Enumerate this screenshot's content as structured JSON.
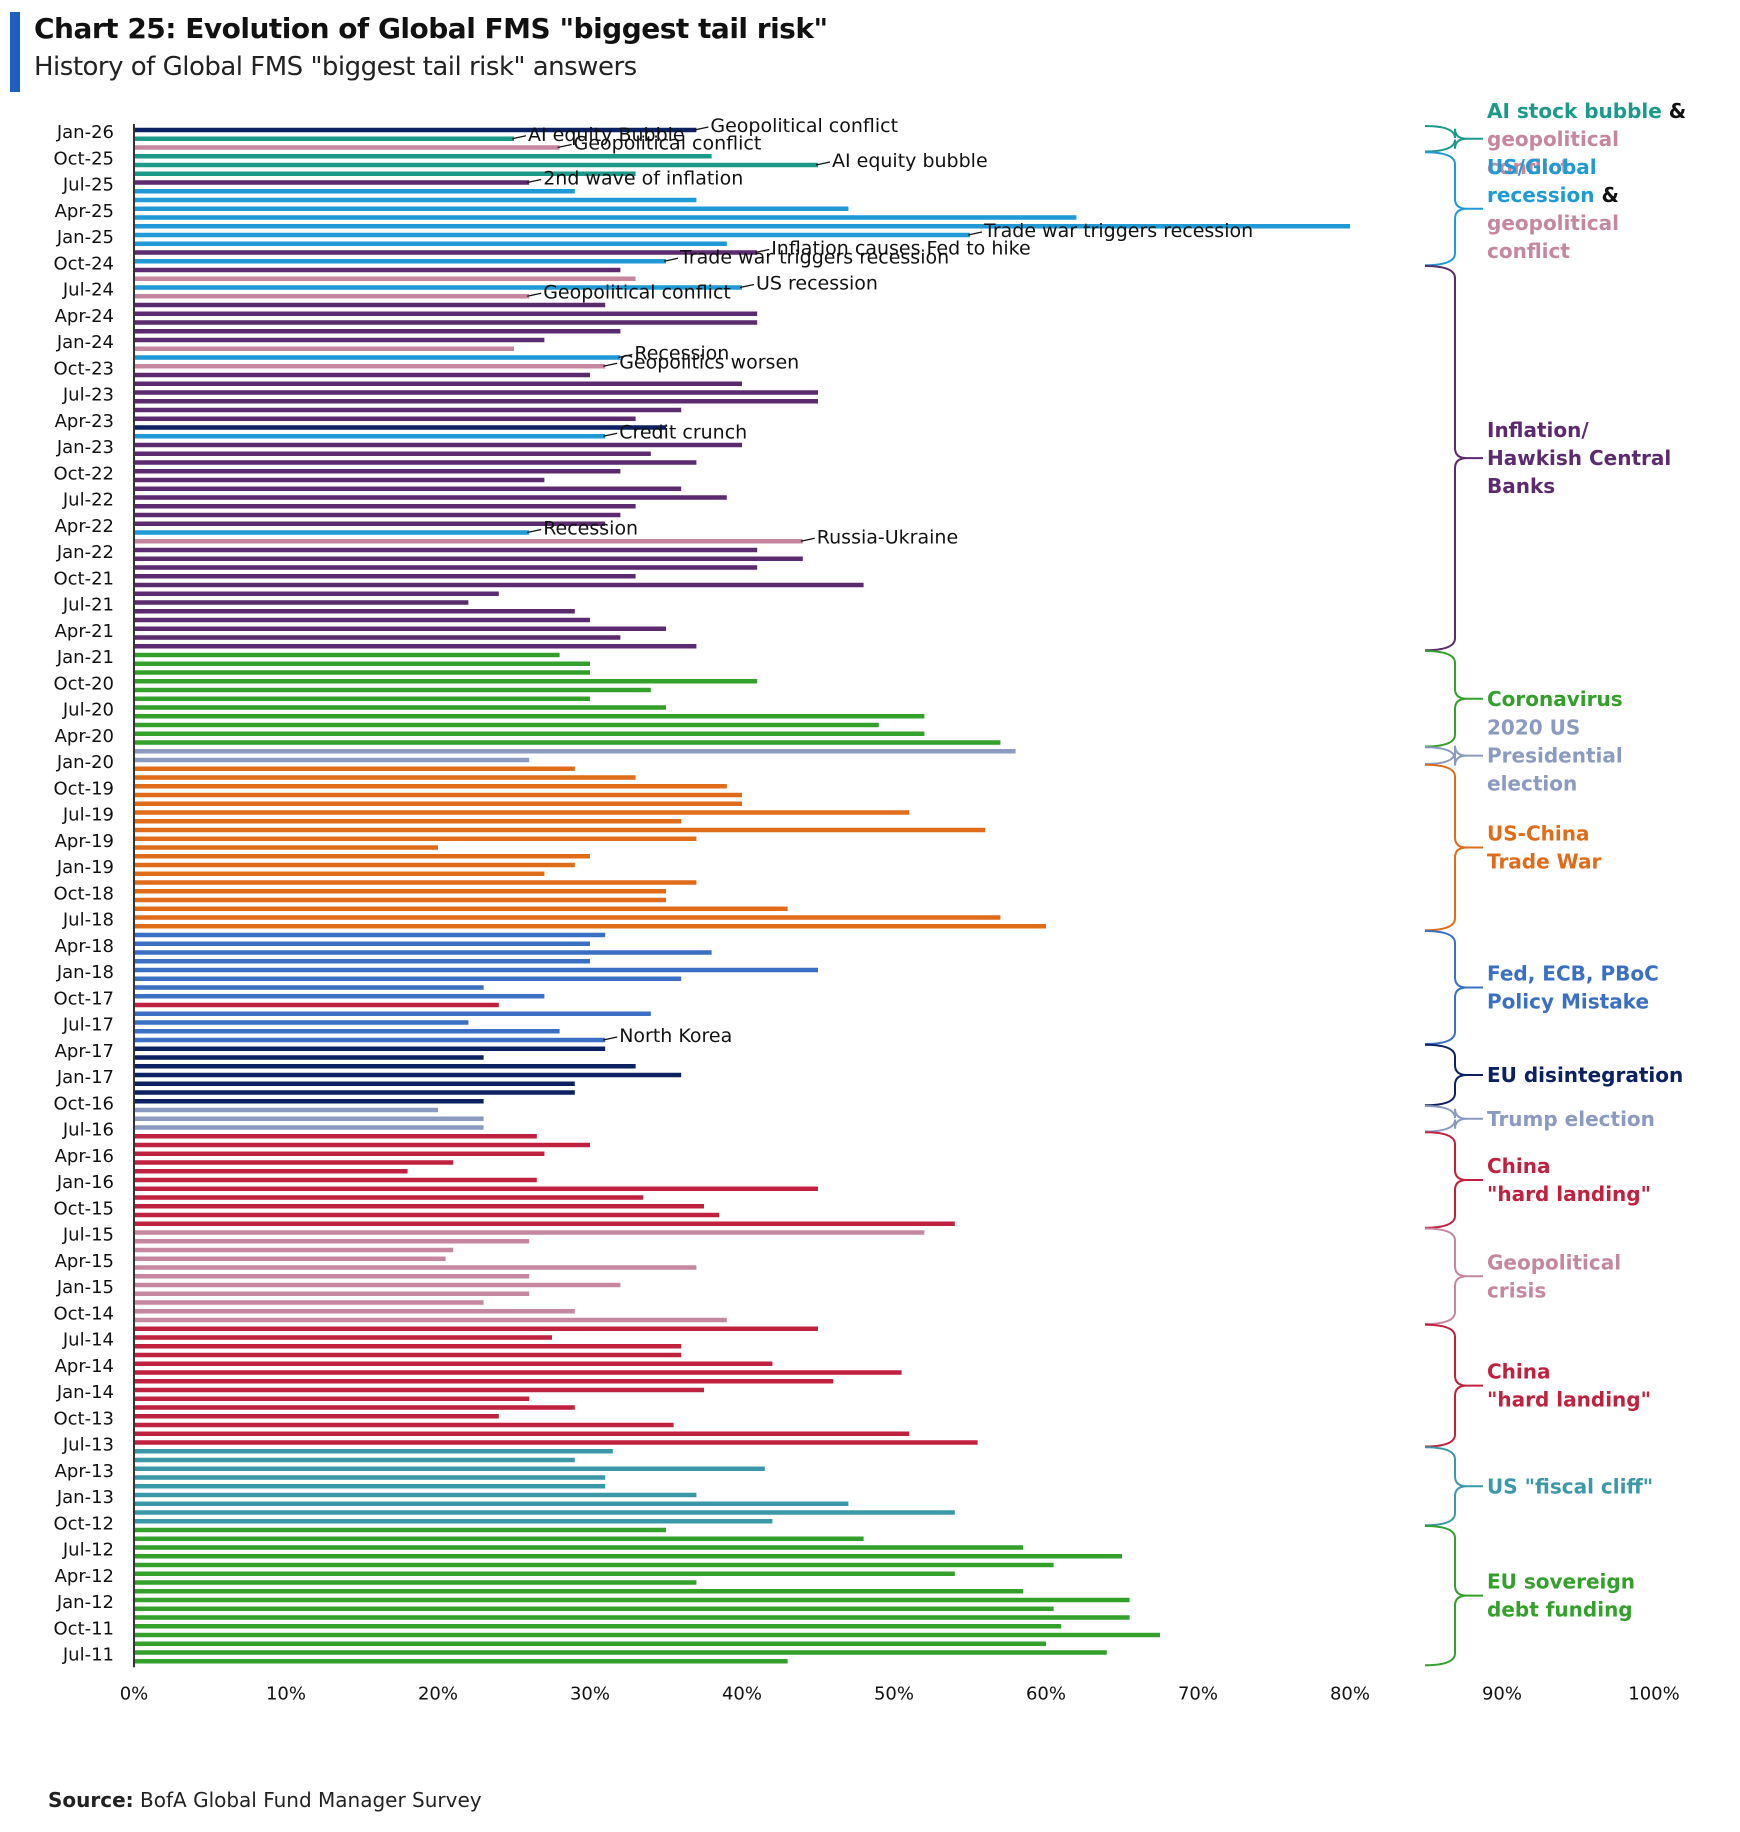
{
  "header": {
    "title": "Chart 25: Evolution of Global FMS \"biggest tail risk\"",
    "subtitle": "History of Global FMS \"biggest tail risk\" answers"
  },
  "source": {
    "label": "Source:",
    "text": " BofA Global Fund Manager Survey"
  },
  "colors": {
    "navy": "#0b2161",
    "teal": "#1b9a8a",
    "pink": "#c5869f",
    "blue": "#1f9ad6",
    "purple": "#5c2a6e",
    "green": "#33a02c",
    "grey_blue": "#8a9ac0",
    "orange": "#e06c1a",
    "royal": "#3a6fc4",
    "red": "#c0213e",
    "fiscal_teal": "#3a98a8"
  },
  "chart_data": {
    "type": "bar",
    "orientation": "horizontal",
    "xlim": [
      0,
      100
    ],
    "x_ticks": [
      "0%",
      "10%",
      "20%",
      "30%",
      "40%",
      "50%",
      "60%",
      "70%",
      "80%",
      "90%",
      "100%"
    ],
    "y_tick_labels": [
      "Jan-26",
      "Oct-25",
      "Jul-25",
      "Apr-25",
      "Jan-25",
      "Oct-24",
      "Jul-24",
      "Apr-24",
      "Jan-24",
      "Oct-23",
      "Jul-23",
      "Apr-23",
      "Jan-23",
      "Oct-22",
      "Jul-22",
      "Apr-22",
      "Jan-22",
      "Oct-21",
      "Jul-21",
      "Apr-21",
      "Jan-21",
      "Oct-20",
      "Jul-20",
      "Apr-20",
      "Jan-20",
      "Oct-19",
      "Jul-19",
      "Apr-19",
      "Jan-19",
      "Oct-18",
      "Jul-18",
      "Apr-18",
      "Jan-18",
      "Oct-17",
      "Jul-17",
      "Apr-17",
      "Jan-17",
      "Oct-16",
      "Jul-16",
      "Apr-16",
      "Jan-16",
      "Oct-15",
      "Jul-15",
      "Apr-15",
      "Jan-15",
      "Oct-14",
      "Jul-14",
      "Apr-14",
      "Jan-14",
      "Oct-13",
      "Jul-13",
      "Apr-13",
      "Jan-13",
      "Oct-12",
      "Jul-12",
      "Apr-12",
      "Jan-12",
      "Oct-11",
      "Jul-11"
    ],
    "bars": [
      {
        "v": 37,
        "c": "navy"
      },
      {
        "v": 25,
        "c": "teal"
      },
      {
        "v": 28,
        "c": "pink"
      },
      {
        "v": 38,
        "c": "teal"
      },
      {
        "v": 45,
        "c": "teal"
      },
      {
        "v": 33,
        "c": "teal"
      },
      {
        "v": 26,
        "c": "purple"
      },
      {
        "v": 29,
        "c": "blue"
      },
      {
        "v": 37,
        "c": "blue"
      },
      {
        "v": 47,
        "c": "blue"
      },
      {
        "v": 62,
        "c": "blue"
      },
      {
        "v": 80,
        "c": "blue"
      },
      {
        "v": 55,
        "c": "blue"
      },
      {
        "v": 39,
        "c": "blue"
      },
      {
        "v": 41,
        "c": "purple"
      },
      {
        "v": 35,
        "c": "blue"
      },
      {
        "v": 32,
        "c": "purple"
      },
      {
        "v": 33,
        "c": "pink"
      },
      {
        "v": 40,
        "c": "blue"
      },
      {
        "v": 26,
        "c": "pink"
      },
      {
        "v": 31,
        "c": "purple"
      },
      {
        "v": 41,
        "c": "purple"
      },
      {
        "v": 41,
        "c": "purple"
      },
      {
        "v": 32,
        "c": "purple"
      },
      {
        "v": 27,
        "c": "purple"
      },
      {
        "v": 25,
        "c": "pink"
      },
      {
        "v": 32,
        "c": "blue"
      },
      {
        "v": 31,
        "c": "pink"
      },
      {
        "v": 30,
        "c": "purple"
      },
      {
        "v": 40,
        "c": "purple"
      },
      {
        "v": 45,
        "c": "purple"
      },
      {
        "v": 45,
        "c": "purple"
      },
      {
        "v": 36,
        "c": "purple"
      },
      {
        "v": 33,
        "c": "purple"
      },
      {
        "v": 35,
        "c": "navy"
      },
      {
        "v": 31,
        "c": "blue"
      },
      {
        "v": 40,
        "c": "purple"
      },
      {
        "v": 34,
        "c": "purple"
      },
      {
        "v": 37,
        "c": "purple"
      },
      {
        "v": 32,
        "c": "purple"
      },
      {
        "v": 27,
        "c": "purple"
      },
      {
        "v": 36,
        "c": "purple"
      },
      {
        "v": 39,
        "c": "purple"
      },
      {
        "v": 33,
        "c": "purple"
      },
      {
        "v": 32,
        "c": "purple"
      },
      {
        "v": 31,
        "c": "purple"
      },
      {
        "v": 26,
        "c": "blue"
      },
      {
        "v": 44,
        "c": "pink"
      },
      {
        "v": 41,
        "c": "purple"
      },
      {
        "v": 44,
        "c": "purple"
      },
      {
        "v": 41,
        "c": "purple"
      },
      {
        "v": 33,
        "c": "purple"
      },
      {
        "v": 48,
        "c": "purple"
      },
      {
        "v": 24,
        "c": "purple"
      },
      {
        "v": 22,
        "c": "purple"
      },
      {
        "v": 29,
        "c": "purple"
      },
      {
        "v": 30,
        "c": "purple"
      },
      {
        "v": 35,
        "c": "purple"
      },
      {
        "v": 32,
        "c": "purple"
      },
      {
        "v": 37,
        "c": "purple"
      },
      {
        "v": 28,
        "c": "green"
      },
      {
        "v": 30,
        "c": "green"
      },
      {
        "v": 30,
        "c": "green"
      },
      {
        "v": 41,
        "c": "green"
      },
      {
        "v": 34,
        "c": "green"
      },
      {
        "v": 30,
        "c": "green"
      },
      {
        "v": 35,
        "c": "green"
      },
      {
        "v": 52,
        "c": "green"
      },
      {
        "v": 49,
        "c": "green"
      },
      {
        "v": 52,
        "c": "green"
      },
      {
        "v": 57,
        "c": "green"
      },
      {
        "v": 58,
        "c": "grey_blue"
      },
      {
        "v": 26,
        "c": "grey_blue"
      },
      {
        "v": 29,
        "c": "orange"
      },
      {
        "v": 33,
        "c": "orange"
      },
      {
        "v": 39,
        "c": "orange"
      },
      {
        "v": 40,
        "c": "orange"
      },
      {
        "v": 40,
        "c": "orange"
      },
      {
        "v": 51,
        "c": "orange"
      },
      {
        "v": 36,
        "c": "orange"
      },
      {
        "v": 56,
        "c": "orange"
      },
      {
        "v": 37,
        "c": "orange"
      },
      {
        "v": 20,
        "c": "orange"
      },
      {
        "v": 30,
        "c": "orange"
      },
      {
        "v": 29,
        "c": "orange"
      },
      {
        "v": 27,
        "c": "orange"
      },
      {
        "v": 37,
        "c": "orange"
      },
      {
        "v": 35,
        "c": "orange"
      },
      {
        "v": 35,
        "c": "orange"
      },
      {
        "v": 43,
        "c": "orange"
      },
      {
        "v": 57,
        "c": "orange"
      },
      {
        "v": 60,
        "c": "orange"
      },
      {
        "v": 31,
        "c": "royal"
      },
      {
        "v": 30,
        "c": "royal"
      },
      {
        "v": 38,
        "c": "royal"
      },
      {
        "v": 30,
        "c": "royal"
      },
      {
        "v": 45,
        "c": "royal"
      },
      {
        "v": 36,
        "c": "royal"
      },
      {
        "v": 23,
        "c": "royal"
      },
      {
        "v": 27,
        "c": "royal"
      },
      {
        "v": 24,
        "c": "red"
      },
      {
        "v": 34,
        "c": "royal"
      },
      {
        "v": 22,
        "c": "royal"
      },
      {
        "v": 28,
        "c": "royal"
      },
      {
        "v": 31,
        "c": "royal"
      },
      {
        "v": 31,
        "c": "navy"
      },
      {
        "v": 23,
        "c": "navy"
      },
      {
        "v": 33,
        "c": "navy"
      },
      {
        "v": 36,
        "c": "navy"
      },
      {
        "v": 29,
        "c": "navy"
      },
      {
        "v": 29,
        "c": "navy"
      },
      {
        "v": 23,
        "c": "navy"
      },
      {
        "v": 20,
        "c": "grey_blue"
      },
      {
        "v": 23,
        "c": "grey_blue"
      },
      {
        "v": 23,
        "c": "grey_blue"
      },
      {
        "v": 26.5,
        "c": "red"
      },
      {
        "v": 30,
        "c": "red"
      },
      {
        "v": 27,
        "c": "red"
      },
      {
        "v": 21,
        "c": "red"
      },
      {
        "v": 18,
        "c": "red"
      },
      {
        "v": 26.5,
        "c": "red"
      },
      {
        "v": 45,
        "c": "red"
      },
      {
        "v": 33.5,
        "c": "red"
      },
      {
        "v": 37.5,
        "c": "red"
      },
      {
        "v": 38.5,
        "c": "red"
      },
      {
        "v": 54,
        "c": "red"
      },
      {
        "v": 52,
        "c": "pink"
      },
      {
        "v": 26,
        "c": "pink"
      },
      {
        "v": 21,
        "c": "pink"
      },
      {
        "v": 20.5,
        "c": "pink"
      },
      {
        "v": 37,
        "c": "pink"
      },
      {
        "v": 26,
        "c": "pink"
      },
      {
        "v": 32,
        "c": "pink"
      },
      {
        "v": 26,
        "c": "pink"
      },
      {
        "v": 23,
        "c": "pink"
      },
      {
        "v": 29,
        "c": "pink"
      },
      {
        "v": 39,
        "c": "pink"
      },
      {
        "v": 45,
        "c": "red"
      },
      {
        "v": 27.5,
        "c": "red"
      },
      {
        "v": 36,
        "c": "red"
      },
      {
        "v": 36,
        "c": "red"
      },
      {
        "v": 42,
        "c": "red"
      },
      {
        "v": 50.5,
        "c": "red"
      },
      {
        "v": 46,
        "c": "red"
      },
      {
        "v": 37.5,
        "c": "red"
      },
      {
        "v": 26,
        "c": "red"
      },
      {
        "v": 29,
        "c": "red"
      },
      {
        "v": 24,
        "c": "red"
      },
      {
        "v": 35.5,
        "c": "red"
      },
      {
        "v": 51,
        "c": "red"
      },
      {
        "v": 55.5,
        "c": "red"
      },
      {
        "v": 31.5,
        "c": "fiscal_teal"
      },
      {
        "v": 29,
        "c": "fiscal_teal"
      },
      {
        "v": 41.5,
        "c": "fiscal_teal"
      },
      {
        "v": 31,
        "c": "fiscal_teal"
      },
      {
        "v": 31,
        "c": "fiscal_teal"
      },
      {
        "v": 37,
        "c": "fiscal_teal"
      },
      {
        "v": 47,
        "c": "fiscal_teal"
      },
      {
        "v": 54,
        "c": "fiscal_teal"
      },
      {
        "v": 42,
        "c": "fiscal_teal"
      },
      {
        "v": 35,
        "c": "green"
      },
      {
        "v": 48,
        "c": "green"
      },
      {
        "v": 58.5,
        "c": "green"
      },
      {
        "v": 65,
        "c": "green"
      },
      {
        "v": 60.5,
        "c": "green"
      },
      {
        "v": 54,
        "c": "green"
      },
      {
        "v": 37,
        "c": "green"
      },
      {
        "v": 58.5,
        "c": "green"
      },
      {
        "v": 65.5,
        "c": "green"
      },
      {
        "v": 60.5,
        "c": "green"
      },
      {
        "v": 65.5,
        "c": "green"
      },
      {
        "v": 61,
        "c": "green"
      },
      {
        "v": 67.5,
        "c": "green"
      },
      {
        "v": 60,
        "c": "green"
      },
      {
        "v": 64,
        "c": "green"
      },
      {
        "v": 43,
        "c": "green"
      }
    ],
    "annotations": [
      {
        "text": "Geopolitical conflict",
        "bar": 0
      },
      {
        "text": "AI equity Bubble",
        "bar": 1
      },
      {
        "text": "Geopolitical conflict",
        "bar": 2
      },
      {
        "text": "AI equity bubble",
        "bar": 4
      },
      {
        "text": "2nd wave of inflation",
        "bar": 6
      },
      {
        "text": "Trade war triggers recession",
        "bar": 12
      },
      {
        "text": "Inflation causes Fed to hike",
        "bar": 14
      },
      {
        "text": "Trade war triggers recession",
        "bar": 15
      },
      {
        "text": "US recession",
        "bar": 18
      },
      {
        "text": "Geopolitical conflict",
        "bar": 19
      },
      {
        "text": "Recession",
        "bar": 26
      },
      {
        "text": "Geopolitics worsen",
        "bar": 27
      },
      {
        "text": "Credit crunch",
        "bar": 35
      },
      {
        "text": "Recession",
        "bar": 46
      },
      {
        "text": "Russia-Ukraine",
        "bar": 47
      },
      {
        "text": "North Korea",
        "bar": 104
      }
    ],
    "categories_legend": [
      {
        "lines": [
          [
            {
              "t": "AI stock bubble ",
              "c": "teal"
            },
            {
              "t": "&",
              "c": "black"
            }
          ],
          [
            {
              "t": "geopolitical",
              "c": "pink"
            }
          ],
          [
            {
              "t": "conflict",
              "c": "pink"
            }
          ]
        ],
        "from": 0,
        "to": 2
      },
      {
        "lines": [
          [
            {
              "t": "US/Global",
              "c": "blue"
            }
          ],
          [
            {
              "t": "recession ",
              "c": "blue"
            },
            {
              "t": "&",
              "c": "black"
            }
          ],
          [
            {
              "t": "geopolitical",
              "c": "pink"
            }
          ],
          [
            {
              "t": "conflict",
              "c": "pink"
            }
          ]
        ],
        "from": 3,
        "to": 15
      },
      {
        "lines": [
          [
            {
              "t": "Inflation/",
              "c": "purple"
            }
          ],
          [
            {
              "t": "Hawkish Central",
              "c": "purple"
            }
          ],
          [
            {
              "t": "Banks",
              "c": "purple"
            }
          ]
        ],
        "from": 16,
        "to": 59
      },
      {
        "lines": [
          [
            {
              "t": "Coronavirus",
              "c": "green"
            }
          ]
        ],
        "from": 60,
        "to": 70
      },
      {
        "lines": [
          [
            {
              "t": "2020 US",
              "c": "grey_blue"
            }
          ],
          [
            {
              "t": "Presidential",
              "c": "grey_blue"
            }
          ],
          [
            {
              "t": "election",
              "c": "grey_blue"
            }
          ]
        ],
        "from": 71,
        "to": 72
      },
      {
        "lines": [
          [
            {
              "t": "US-China",
              "c": "orange"
            }
          ],
          [
            {
              "t": "Trade War",
              "c": "orange"
            }
          ]
        ],
        "from": 73,
        "to": 91
      },
      {
        "lines": [
          [
            {
              "t": "Fed, ECB, PBoC",
              "c": "royal"
            }
          ],
          [
            {
              "t": "Policy Mistake",
              "c": "royal"
            }
          ]
        ],
        "from": 92,
        "to": 104
      },
      {
        "lines": [
          [
            {
              "t": "EU disintegration",
              "c": "navy"
            }
          ]
        ],
        "from": 105,
        "to": 111
      },
      {
        "lines": [
          [
            {
              "t": "Trump election",
              "c": "grey_blue"
            }
          ]
        ],
        "from": 112,
        "to": 114
      },
      {
        "lines": [
          [
            {
              "t": "China",
              "c": "red"
            }
          ],
          [
            {
              "t": "\"hard landing\"",
              "c": "red"
            }
          ]
        ],
        "from": 115,
        "to": 125
      },
      {
        "lines": [
          [
            {
              "t": "Geopolitical",
              "c": "pink"
            }
          ],
          [
            {
              "t": "crisis",
              "c": "pink"
            }
          ]
        ],
        "from": 126,
        "to": 136
      },
      {
        "lines": [
          [
            {
              "t": "China",
              "c": "red"
            }
          ],
          [
            {
              "t": "\"hard landing\"",
              "c": "red"
            }
          ]
        ],
        "from": 137,
        "to": 150
      },
      {
        "lines": [
          [
            {
              "t": "US \"fiscal cliff\"",
              "c": "fiscal_teal"
            }
          ]
        ],
        "from": 151,
        "to": 159
      },
      {
        "lines": [
          [
            {
              "t": "EU sovereign",
              "c": "green"
            }
          ],
          [
            {
              "t": "debt funding",
              "c": "green"
            }
          ]
        ],
        "from": 160,
        "to": 175
      }
    ]
  }
}
